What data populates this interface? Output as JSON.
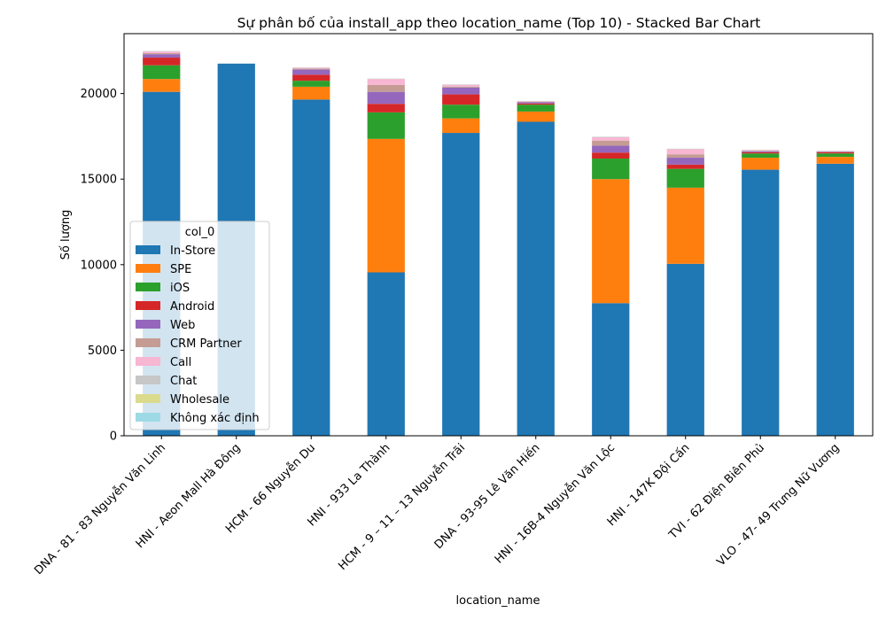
{
  "chart_data": {
    "type": "bar",
    "stacked": true,
    "title": "Sự phân bố của install_app theo location_name (Top 10) - Stacked Bar Chart",
    "xlabel": "location_name",
    "ylabel": "Số lượng",
    "ylim": [
      0,
      23500
    ],
    "yticks": [
      0,
      5000,
      10000,
      15000,
      20000
    ],
    "grid": false,
    "legend": {
      "title": "col_0",
      "placement": "center-left"
    },
    "categories": [
      "DNA - 81 - 83 Nguyễn Văn Linh",
      "HNI - Aeon Mall Hà Đông",
      "HCM - 66 Nguyễn Du",
      "HNI - 933 La Thành",
      "HCM - 9 – 11 – 13 Nguyễn Trãi",
      "DNA - 93-95 Lê Văn Hiến",
      "HNI - 16B-4 Nguyễn Văn Lộc",
      "HNI - 147K Đội Cấn",
      "TVI - 62 Điện Biên Phủ",
      "VLO - 47- 49 Trưng Nữ Vương"
    ],
    "series": [
      {
        "name": "In-Store",
        "color": "#1f77b4",
        "values": [
          20100,
          21750,
          19650,
          9550,
          17700,
          18350,
          7750,
          10050,
          15550,
          15900
        ]
      },
      {
        "name": "SPE",
        "color": "#ff7f0e",
        "values": [
          750,
          0,
          750,
          7800,
          850,
          600,
          7250,
          4450,
          700,
          400
        ]
      },
      {
        "name": "iOS",
        "color": "#2ca02c",
        "values": [
          800,
          0,
          350,
          1550,
          800,
          400,
          1200,
          1100,
          250,
          200
        ]
      },
      {
        "name": "Android",
        "color": "#d62728",
        "values": [
          450,
          0,
          350,
          500,
          600,
          70,
          350,
          250,
          70,
          70
        ]
      },
      {
        "name": "Web",
        "color": "#9467bd",
        "values": [
          200,
          0,
          300,
          700,
          400,
          80,
          400,
          400,
          60,
          30
        ]
      },
      {
        "name": "CRM Partner",
        "color": "#c49c94",
        "values": [
          60,
          0,
          60,
          400,
          60,
          30,
          300,
          200,
          30,
          20
        ]
      },
      {
        "name": "Call",
        "color": "#f7b6d2",
        "values": [
          100,
          0,
          50,
          350,
          100,
          20,
          200,
          300,
          40,
          20
        ]
      },
      {
        "name": "Chat",
        "color": "#c7c7c7",
        "values": [
          20,
          0,
          10,
          20,
          20,
          10,
          20,
          20,
          10,
          10
        ]
      },
      {
        "name": "Wholesale",
        "color": "#dbdb8d",
        "values": [
          5,
          0,
          5,
          5,
          5,
          5,
          5,
          5,
          5,
          5
        ]
      },
      {
        "name": "Không xác định",
        "color": "#9edae5",
        "values": [
          5,
          0,
          5,
          5,
          5,
          5,
          5,
          5,
          5,
          5
        ]
      }
    ]
  }
}
